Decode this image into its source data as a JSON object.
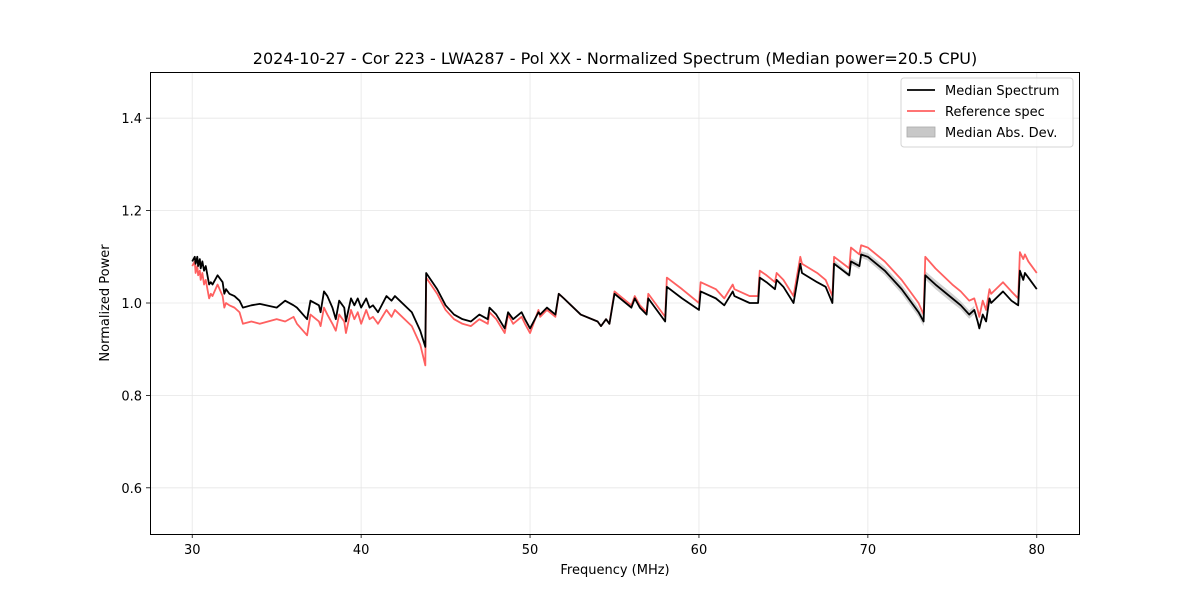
{
  "chart_data": {
    "type": "line",
    "title": "2024-10-27 - Cor 223 - LWA287 - Pol XX - Normalized Spectrum (Median power=20.5 CPU)",
    "xlabel": "Frequency (MHz)",
    "ylabel": "Normalized Power",
    "xlim": [
      27.5,
      82.5
    ],
    "ylim": [
      0.5,
      1.5
    ],
    "xticks": [
      30,
      40,
      50,
      60,
      70,
      80
    ],
    "yticks": [
      0.6,
      0.8,
      1.0,
      1.2,
      1.4
    ],
    "xtick_labels": [
      "30",
      "40",
      "50",
      "60",
      "70",
      "80"
    ],
    "ytick_labels": [
      "0.6",
      "0.8",
      "1.0",
      "1.2",
      "1.4"
    ],
    "grid": true,
    "legend_position": "top-right",
    "legend": [
      {
        "name": "Median Spectrum",
        "style": "line",
        "color": "#000000"
      },
      {
        "name": "Reference spec",
        "style": "line",
        "color": "#ff6060"
      },
      {
        "name": "Median Abs. Dev.",
        "style": "patch",
        "color": "#c8c8c8"
      }
    ],
    "series": [
      {
        "name": "Median Spectrum",
        "color": "#000000",
        "x": [
          30.0,
          30.15,
          30.2,
          30.3,
          30.35,
          30.45,
          30.5,
          30.6,
          30.7,
          30.8,
          30.9,
          31.0,
          31.1,
          31.2,
          31.5,
          31.8,
          31.9,
          32.0,
          32.2,
          32.5,
          32.8,
          33.0,
          33.5,
          34.0,
          35.0,
          35.5,
          36.0,
          36.2,
          36.8,
          37.0,
          37.5,
          37.6,
          37.8,
          38.0,
          38.3,
          38.5,
          38.7,
          39.0,
          39.1,
          39.4,
          39.6,
          39.8,
          40.0,
          40.3,
          40.5,
          40.7,
          41.0,
          41.5,
          41.8,
          42.0,
          43.0,
          43.5,
          43.8,
          43.85,
          44.5,
          45.0,
          45.5,
          46.0,
          46.5,
          47.0,
          47.5,
          47.6,
          48.0,
          48.5,
          48.7,
          49.0,
          49.5,
          49.7,
          50.0,
          50.5,
          50.6,
          51.0,
          51.5,
          51.7,
          52.0,
          53.0,
          54.0,
          54.2,
          54.5,
          54.7,
          55.0,
          56.0,
          56.2,
          56.5,
          56.9,
          57.0,
          58.0,
          58.1,
          59.0,
          60.0,
          60.1,
          61.0,
          61.5,
          62.0,
          62.1,
          63.0,
          63.5,
          63.6,
          64.0,
          64.5,
          64.6,
          65.0,
          65.6,
          66.0,
          66.1,
          67.0,
          67.5,
          67.9,
          68.0,
          68.9,
          69.0,
          69.5,
          69.6,
          70.0,
          71.0,
          72.0,
          73.0,
          73.3,
          73.4,
          74.0,
          75.0,
          75.5,
          76.0,
          76.3,
          76.5,
          76.6,
          76.8,
          77.0,
          77.2,
          77.3,
          78.0,
          78.5,
          78.9,
          79.0,
          79.2,
          79.3,
          79.5,
          79.7,
          80.0
        ],
        "values": [
          1.09,
          1.1,
          1.085,
          1.1,
          1.08,
          1.095,
          1.075,
          1.09,
          1.07,
          1.08,
          1.06,
          1.04,
          1.045,
          1.04,
          1.06,
          1.045,
          1.02,
          1.03,
          1.02,
          1.015,
          1.005,
          0.99,
          0.995,
          0.998,
          0.99,
          1.005,
          0.995,
          0.99,
          0.965,
          1.005,
          0.995,
          0.98,
          1.025,
          1.015,
          0.99,
          0.965,
          1.005,
          0.99,
          0.96,
          1.01,
          0.995,
          1.01,
          0.99,
          1.01,
          0.99,
          0.995,
          0.98,
          1.015,
          1.005,
          1.015,
          0.98,
          0.94,
          0.905,
          1.065,
          1.03,
          0.995,
          0.975,
          0.965,
          0.96,
          0.975,
          0.965,
          0.99,
          0.975,
          0.945,
          0.98,
          0.965,
          0.98,
          0.965,
          0.945,
          0.98,
          0.975,
          0.99,
          0.975,
          1.02,
          1.01,
          0.975,
          0.96,
          0.95,
          0.965,
          0.955,
          1.02,
          0.99,
          1.01,
          0.99,
          0.975,
          1.01,
          0.96,
          1.035,
          1.01,
          0.985,
          1.025,
          1.01,
          0.995,
          1.025,
          1.015,
          1.0,
          1.0,
          1.055,
          1.045,
          1.03,
          1.05,
          1.035,
          1.0,
          1.085,
          1.065,
          1.045,
          1.035,
          1.0,
          1.085,
          1.06,
          1.09,
          1.08,
          1.105,
          1.1,
          1.07,
          1.03,
          0.98,
          0.96,
          1.06,
          1.04,
          1.01,
          0.995,
          0.975,
          0.985,
          0.96,
          0.945,
          0.975,
          0.96,
          1.01,
          1.0,
          1.025,
          1.005,
          0.995,
          1.07,
          1.05,
          1.065,
          1.055,
          1.045,
          1.03
        ]
      },
      {
        "name": "Reference spec",
        "color": "#ff6060",
        "x": [
          30.0,
          30.15,
          30.2,
          30.3,
          30.35,
          30.45,
          30.5,
          30.6,
          30.7,
          30.8,
          30.9,
          31.0,
          31.1,
          31.2,
          31.5,
          31.8,
          31.9,
          32.0,
          32.2,
          32.5,
          32.8,
          33.0,
          33.5,
          34.0,
          35.0,
          35.5,
          36.0,
          36.2,
          36.8,
          37.0,
          37.5,
          37.6,
          37.8,
          38.0,
          38.3,
          38.5,
          38.7,
          39.0,
          39.1,
          39.4,
          39.6,
          39.8,
          40.0,
          40.3,
          40.5,
          40.7,
          41.0,
          41.5,
          41.8,
          42.0,
          43.0,
          43.5,
          43.8,
          43.85,
          44.5,
          45.0,
          45.5,
          46.0,
          46.5,
          47.0,
          47.5,
          47.6,
          48.0,
          48.5,
          48.7,
          49.0,
          49.5,
          49.7,
          50.0,
          50.5,
          50.6,
          51.0,
          51.5,
          51.7,
          52.0,
          53.0,
          54.0,
          54.2,
          54.5,
          54.7,
          55.0,
          56.0,
          56.2,
          56.5,
          56.9,
          57.0,
          58.0,
          58.1,
          59.0,
          60.0,
          60.1,
          61.0,
          61.5,
          62.0,
          62.1,
          63.0,
          63.5,
          63.6,
          64.0,
          64.5,
          64.6,
          65.0,
          65.6,
          66.0,
          66.1,
          67.0,
          67.5,
          67.9,
          68.0,
          68.9,
          69.0,
          69.5,
          69.6,
          70.0,
          71.0,
          72.0,
          73.0,
          73.3,
          73.4,
          74.0,
          75.0,
          75.5,
          76.0,
          76.3,
          76.5,
          76.6,
          76.8,
          77.0,
          77.2,
          77.3,
          78.0,
          78.5,
          78.9,
          79.0,
          79.2,
          79.3,
          79.5,
          79.7,
          80.0
        ],
        "values": [
          1.08,
          1.09,
          1.065,
          1.08,
          1.06,
          1.07,
          1.05,
          1.065,
          1.04,
          1.05,
          1.03,
          1.01,
          1.02,
          1.015,
          1.04,
          1.015,
          0.99,
          1.0,
          0.995,
          0.99,
          0.98,
          0.955,
          0.96,
          0.955,
          0.965,
          0.96,
          0.97,
          0.955,
          0.93,
          0.975,
          0.96,
          0.95,
          0.99,
          0.975,
          0.955,
          0.94,
          0.975,
          0.96,
          0.935,
          0.985,
          0.965,
          0.98,
          0.955,
          0.985,
          0.965,
          0.97,
          0.955,
          0.985,
          0.97,
          0.985,
          0.95,
          0.91,
          0.865,
          1.055,
          1.02,
          0.985,
          0.965,
          0.955,
          0.95,
          0.965,
          0.955,
          0.98,
          0.965,
          0.935,
          0.975,
          0.955,
          0.97,
          0.955,
          0.935,
          0.985,
          0.97,
          0.985,
          0.97,
          1.02,
          1.01,
          0.975,
          0.96,
          0.95,
          0.965,
          0.955,
          1.025,
          0.995,
          1.015,
          0.995,
          0.98,
          1.02,
          0.97,
          1.055,
          1.03,
          1.0,
          1.045,
          1.03,
          1.01,
          1.04,
          1.03,
          1.015,
          1.015,
          1.07,
          1.06,
          1.045,
          1.065,
          1.05,
          1.015,
          1.1,
          1.085,
          1.065,
          1.05,
          1.015,
          1.1,
          1.075,
          1.12,
          1.105,
          1.125,
          1.12,
          1.09,
          1.05,
          1.0,
          0.975,
          1.1,
          1.075,
          1.04,
          1.025,
          1.005,
          1.01,
          0.985,
          0.97,
          1.005,
          0.985,
          1.03,
          1.02,
          1.045,
          1.025,
          1.01,
          1.11,
          1.095,
          1.105,
          1.09,
          1.08,
          1.065
        ]
      }
    ],
    "mad_band": {
      "name": "Median Abs. Dev.",
      "color": "#c8c8c8",
      "x": [
        68.0,
        68.9,
        69.0,
        69.5,
        69.6,
        70.0,
        71.0,
        72.0,
        73.0,
        73.3,
        73.4,
        74.0,
        75.0,
        75.5,
        76.0,
        76.3
      ],
      "lower": [
        1.085,
        1.055,
        1.083,
        1.073,
        1.098,
        1.092,
        1.061,
        1.02,
        0.97,
        0.95,
        1.051,
        1.03,
        1.0,
        0.986,
        0.966,
        0.976
      ],
      "upper": [
        1.093,
        1.065,
        1.097,
        1.087,
        1.112,
        1.108,
        1.079,
        1.04,
        0.99,
        0.97,
        1.069,
        1.05,
        1.02,
        1.004,
        0.984,
        0.994
      ]
    }
  }
}
